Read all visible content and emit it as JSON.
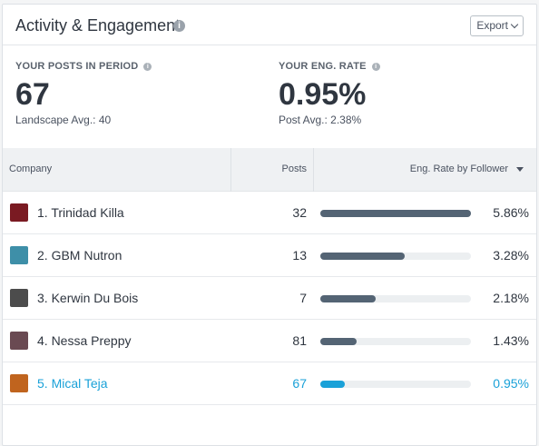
{
  "header": {
    "title": "Activity & Engagement",
    "export_label": "Export"
  },
  "stats": {
    "posts": {
      "label": "YOUR POSTS IN PERIOD",
      "value": "67",
      "sub": "Landscape Avg.: 40"
    },
    "rate": {
      "label": "YOUR ENG. RATE",
      "value": "0.95%",
      "sub": "Post Avg.: 2.38%"
    }
  },
  "table": {
    "columns": {
      "company": "Company",
      "posts": "Posts",
      "rate": "Eng. Rate by Follower"
    },
    "rows": [
      {
        "name": "1. Trinidad Killa",
        "posts": "32",
        "rate": "5.86%",
        "fraction": 1.0,
        "avatar_color": "#7a1a22"
      },
      {
        "name": "2. GBM Nutron",
        "posts": "13",
        "rate": "3.28%",
        "fraction": 0.56,
        "avatar_color": "#3e8fa8"
      },
      {
        "name": "3. Kerwin Du Bois",
        "posts": "7",
        "rate": "2.18%",
        "fraction": 0.37,
        "avatar_color": "#4c4c4c"
      },
      {
        "name": "4. Nessa Preppy",
        "posts": "81",
        "rate": "1.43%",
        "fraction": 0.24,
        "avatar_color": "#6a4a52"
      },
      {
        "name": "5. Mical Teja",
        "posts": "67",
        "rate": "0.95%",
        "fraction": 0.16,
        "avatar_color": "#c0641e",
        "highlight": true
      }
    ]
  }
}
